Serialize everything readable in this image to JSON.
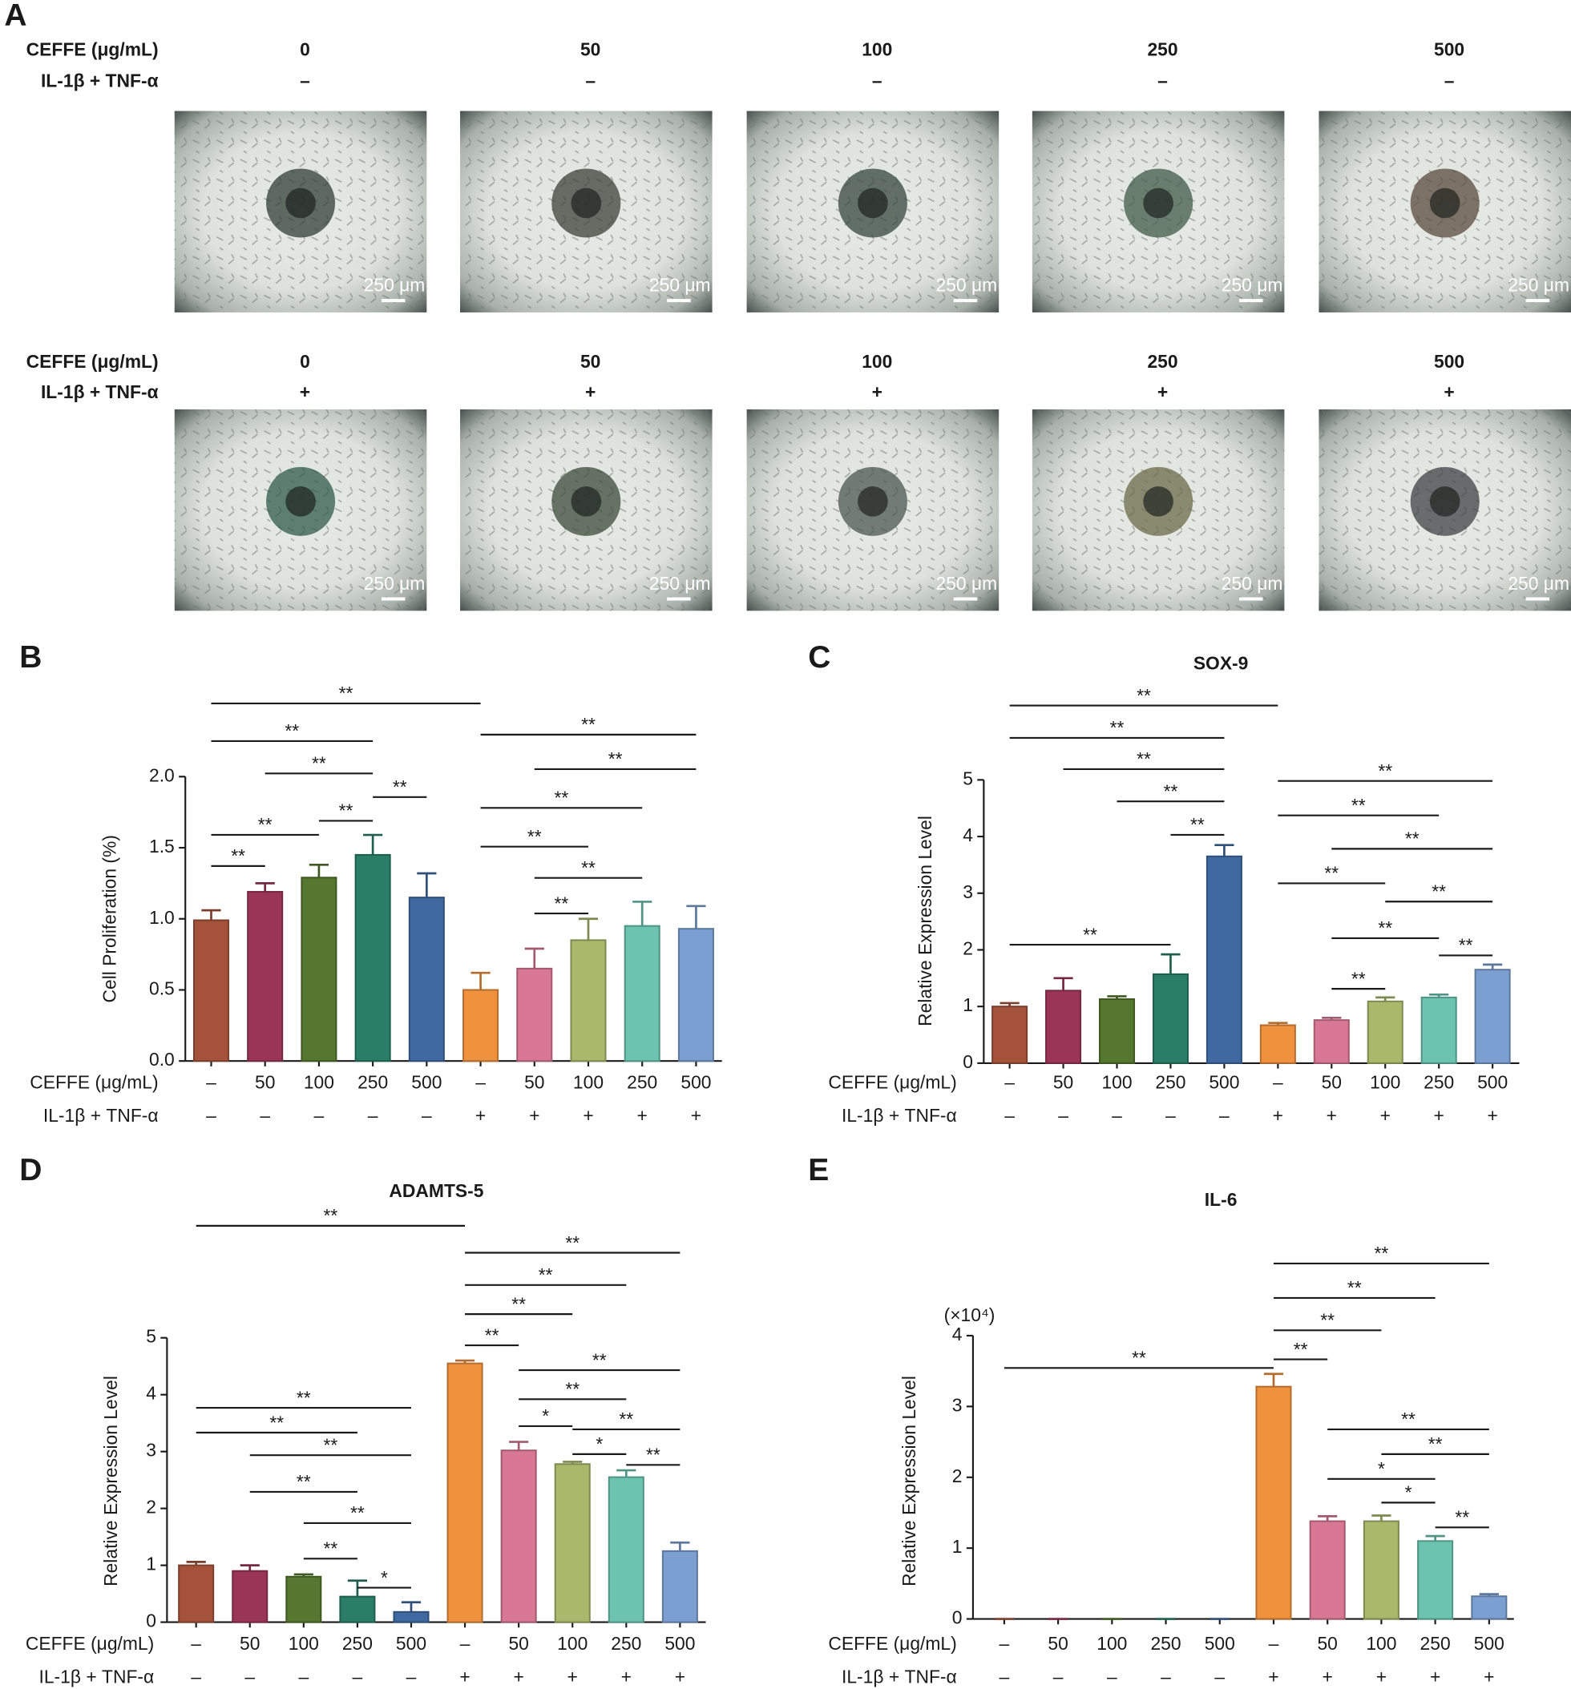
{
  "panel_a": {
    "label": "A",
    "rows": [
      {
        "row_labels": [
          "CEFFE (μg/mL)",
          "IL-1β + TNF-α"
        ],
        "concentrations": [
          "0",
          "50",
          "100",
          "250",
          "500"
        ],
        "treatment": [
          "–",
          "–",
          "–",
          "–",
          "–"
        ]
      },
      {
        "row_labels": [
          "CEFFE (μg/mL)",
          "IL-1β + TNF-α"
        ],
        "concentrations": [
          "0",
          "50",
          "100",
          "250",
          "500"
        ],
        "treatment": [
          "+",
          "+",
          "+",
          "+",
          "+"
        ]
      }
    ],
    "scale_bar": "250 μm"
  },
  "chart_data": [
    {
      "type": "bar",
      "panel": "B",
      "ylabel": "Cell Proliferation (%)",
      "ylim": [
        0,
        2
      ],
      "yticks": [
        {
          "value": 0,
          "label": "0.0"
        },
        0.5,
        {
          "value": 1,
          "label": "1.0"
        },
        1.5,
        {
          "value": 2,
          "label": "2.0"
        }
      ],
      "row_labels": [
        "CEFFE (μg/mL)",
        "IL-1β + TNF-α"
      ],
      "categories": [
        "–",
        "50",
        "100",
        "250",
        "500",
        "–",
        "50",
        "100",
        "250",
        "500"
      ],
      "treatment": [
        "–",
        "–",
        "–",
        "–",
        "–",
        "+",
        "+",
        "+",
        "+",
        "+"
      ],
      "colors": [
        "#a5523b",
        "#9a3558",
        "#55772f",
        "#2a7d66",
        "#3f69a0",
        "#f0913e",
        "#d97894",
        "#a9b86b",
        "#6cc4b0",
        "#7c9fd1"
      ],
      "values": [
        0.99,
        1.19,
        1.29,
        1.45,
        1.15,
        0.5,
        0.65,
        0.85,
        0.95,
        0.93
      ],
      "errors": [
        0.07,
        0.06,
        0.09,
        0.14,
        0.17,
        0.12,
        0.14,
        0.15,
        0.17,
        0.16
      ],
      "brackets": [
        {
          "between": [
            0,
            5
          ],
          "label": "**"
        },
        {
          "between": [
            0,
            3
          ],
          "label": "**"
        },
        {
          "between": [
            1,
            3
          ],
          "label": "**"
        },
        {
          "between": [
            3,
            4
          ],
          "label": "**"
        },
        {
          "between": [
            2,
            3
          ],
          "label": "**"
        },
        {
          "between": [
            0,
            2
          ],
          "label": "**"
        },
        {
          "between": [
            0,
            1
          ],
          "label": "**"
        },
        {
          "between": [
            5,
            9
          ],
          "label": "**"
        },
        {
          "between": [
            6,
            9
          ],
          "label": "**"
        },
        {
          "between": [
            5,
            8
          ],
          "label": "**"
        },
        {
          "between": [
            5,
            7
          ],
          "label": "**"
        },
        {
          "between": [
            6,
            8
          ],
          "label": "**"
        },
        {
          "between": [
            6,
            7
          ],
          "label": "**"
        }
      ]
    },
    {
      "type": "bar",
      "panel": "C",
      "title": "SOX-9",
      "ylabel": "Relative Expression Level",
      "ylim": [
        0,
        5
      ],
      "yticks": [
        0,
        1,
        2,
        3,
        4,
        5
      ],
      "row_labels": [
        "CEFFE (μg/mL)",
        "IL-1β + TNF-α"
      ],
      "categories": [
        "–",
        "50",
        "100",
        "250",
        "500",
        "–",
        "50",
        "100",
        "250",
        "500"
      ],
      "treatment": [
        "–",
        "–",
        "–",
        "–",
        "–",
        "+",
        "+",
        "+",
        "+",
        "+"
      ],
      "colors": [
        "#a5523b",
        "#9a3558",
        "#55772f",
        "#2a7d66",
        "#3f69a0",
        "#f0913e",
        "#d97894",
        "#a9b86b",
        "#6cc4b0",
        "#7c9fd1"
      ],
      "values": [
        1.0,
        1.28,
        1.13,
        1.57,
        3.65,
        0.67,
        0.76,
        1.09,
        1.16,
        1.65
      ],
      "errors": [
        0.06,
        0.22,
        0.05,
        0.35,
        0.2,
        0.04,
        0.04,
        0.07,
        0.05,
        0.09
      ],
      "brackets": [
        {
          "between": [
            0,
            5
          ],
          "label": "**"
        },
        {
          "between": [
            0,
            4
          ],
          "label": "**"
        },
        {
          "between": [
            1,
            4
          ],
          "label": "**"
        },
        {
          "between": [
            2,
            4
          ],
          "label": "**"
        },
        {
          "between": [
            3,
            4
          ],
          "label": "**"
        },
        {
          "between": [
            0,
            3
          ],
          "label": "**"
        },
        {
          "between": [
            5,
            9
          ],
          "label": "**"
        },
        {
          "between": [
            5,
            8
          ],
          "label": "**"
        },
        {
          "between": [
            6,
            9
          ],
          "label": "**"
        },
        {
          "between": [
            5,
            7
          ],
          "label": "**"
        },
        {
          "between": [
            7,
            9
          ],
          "label": "**"
        },
        {
          "between": [
            6,
            8
          ],
          "label": "**"
        },
        {
          "between": [
            8,
            9
          ],
          "label": "**"
        },
        {
          "between": [
            6,
            7
          ],
          "label": "**"
        }
      ]
    },
    {
      "type": "bar",
      "panel": "D",
      "title": "ADAMTS-5",
      "ylabel": "Relative Expression Level",
      "ylim": [
        0,
        5
      ],
      "yticks": [
        0,
        1,
        2,
        3,
        4,
        5
      ],
      "row_labels": [
        "CEFFE (μg/mL)",
        "IL-1β + TNF-α"
      ],
      "categories": [
        "–",
        "50",
        "100",
        "250",
        "500",
        "–",
        "50",
        "100",
        "250",
        "500"
      ],
      "treatment": [
        "–",
        "–",
        "–",
        "–",
        "–",
        "+",
        "+",
        "+",
        "+",
        "+"
      ],
      "colors": [
        "#a5523b",
        "#9a3558",
        "#55772f",
        "#2a7d66",
        "#3f69a0",
        "#f0913e",
        "#d97894",
        "#a9b86b",
        "#6cc4b0",
        "#7c9fd1"
      ],
      "values": [
        1.0,
        0.9,
        0.8,
        0.45,
        0.18,
        4.55,
        3.02,
        2.78,
        2.55,
        1.25
      ],
      "errors": [
        0.06,
        0.1,
        0.04,
        0.28,
        0.17,
        0.05,
        0.15,
        0.04,
        0.12,
        0.15
      ],
      "brackets": [
        {
          "between": [
            0,
            5
          ],
          "label": "**"
        },
        {
          "between": [
            5,
            9
          ],
          "label": "**"
        },
        {
          "between": [
            5,
            8
          ],
          "label": "**"
        },
        {
          "between": [
            5,
            7
          ],
          "label": "**"
        },
        {
          "between": [
            5,
            6
          ],
          "label": "**"
        },
        {
          "between": [
            6,
            9
          ],
          "label": "**"
        },
        {
          "between": [
            6,
            8
          ],
          "label": "**"
        },
        {
          "between": [
            6,
            7
          ],
          "label": "*"
        },
        {
          "between": [
            7,
            9
          ],
          "label": "**"
        },
        {
          "between": [
            7,
            8
          ],
          "label": "*"
        },
        {
          "between": [
            8,
            9
          ],
          "label": "**"
        },
        {
          "between": [
            0,
            4
          ],
          "label": "**"
        },
        {
          "between": [
            0,
            3
          ],
          "label": "**"
        },
        {
          "between": [
            1,
            4
          ],
          "label": "**"
        },
        {
          "between": [
            1,
            3
          ],
          "label": "**"
        },
        {
          "between": [
            2,
            4
          ],
          "label": "**"
        },
        {
          "between": [
            2,
            3
          ],
          "label": "**"
        },
        {
          "between": [
            3,
            4
          ],
          "label": "*"
        }
      ]
    },
    {
      "type": "bar",
      "panel": "E",
      "title": "IL-6",
      "ylabel": "Relative Expression Level",
      "axis_note": "(×10⁴)",
      "ylim": [
        0,
        4
      ],
      "yticks": [
        0,
        1,
        2,
        3,
        4
      ],
      "row_labels": [
        "CEFFE (μg/mL)",
        "IL-1β + TNF-α"
      ],
      "categories": [
        "–",
        "50",
        "100",
        "250",
        "500",
        "–",
        "50",
        "100",
        "250",
        "500"
      ],
      "treatment": [
        "–",
        "–",
        "–",
        "–",
        "–",
        "+",
        "+",
        "+",
        "+",
        "+"
      ],
      "colors": [
        "#a5523b",
        "#9a3558",
        "#55772f",
        "#2a7d66",
        "#3f69a0",
        "#f0913e",
        "#d97894",
        "#a9b86b",
        "#6cc4b0",
        "#7c9fd1"
      ],
      "values": [
        0,
        0,
        0,
        0,
        0,
        3.28,
        1.38,
        1.38,
        1.1,
        0.32
      ],
      "errors": [
        0,
        0,
        0,
        0,
        0,
        0.18,
        0.07,
        0.08,
        0.07,
        0.03
      ],
      "brackets": [
        {
          "between": [
            5,
            9
          ],
          "label": "**"
        },
        {
          "between": [
            5,
            8
          ],
          "label": "**"
        },
        {
          "between": [
            5,
            7
          ],
          "label": "**"
        },
        {
          "between": [
            5,
            6
          ],
          "label": "**"
        },
        {
          "between": [
            0,
            5
          ],
          "label": "**"
        },
        {
          "between": [
            6,
            9
          ],
          "label": "**"
        },
        {
          "between": [
            7,
            9
          ],
          "label": "**"
        },
        {
          "between": [
            6,
            8
          ],
          "label": "*"
        },
        {
          "between": [
            7,
            8
          ],
          "label": "*"
        },
        {
          "between": [
            8,
            9
          ],
          "label": "**"
        }
      ]
    }
  ]
}
